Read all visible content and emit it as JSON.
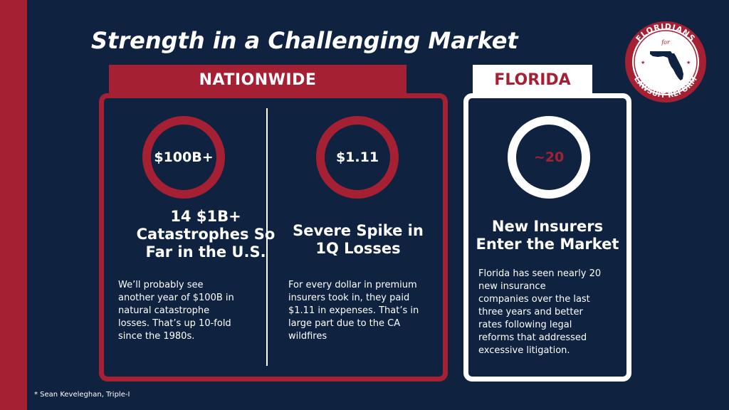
{
  "title": "Strength in a Challenging Market",
  "nationwide": {
    "tab_label": "NATIONWIDE",
    "stat1": {
      "value": "$100B+",
      "heading_lines": [
        "14 $1B+",
        "Catastrophes So",
        "Far in the U.S."
      ],
      "body_lines": [
        "We’ll probably see",
        "another year of $100B in",
        "natural catastrophe",
        "losses. That’s up 10-fold",
        "since the 1980s."
      ]
    },
    "stat2": {
      "value": "$1.11",
      "heading_lines": [
        "Severe Spike in",
        "1Q Losses"
      ],
      "body_lines": [
        "For every dollar in premium",
        "insurers took in, they paid",
        "$1.11 in expenses. That’s in",
        "large part due to the CA",
        "wildfires"
      ]
    }
  },
  "florida": {
    "tab_label": "FLORIDA",
    "stat": {
      "value": "~20",
      "heading_lines": [
        "New Insurers",
        "Enter the Market"
      ],
      "body_lines": [
        "Florida has seen nearly 20",
        "new insurance",
        "companies over the last",
        "three years and better",
        "rates following legal",
        "reforms that addressed",
        "excessive litigation."
      ]
    }
  },
  "footnote": "* Sean Keveleghan, Triple-I",
  "logo": {
    "top_text": "FLORIDIANS",
    "middle_text": "for",
    "bottom_text": "LAWSUIT REFORM"
  },
  "colors": {
    "background": "#0f2340",
    "accent_red": "#a52033",
    "white": "#ffffff"
  }
}
